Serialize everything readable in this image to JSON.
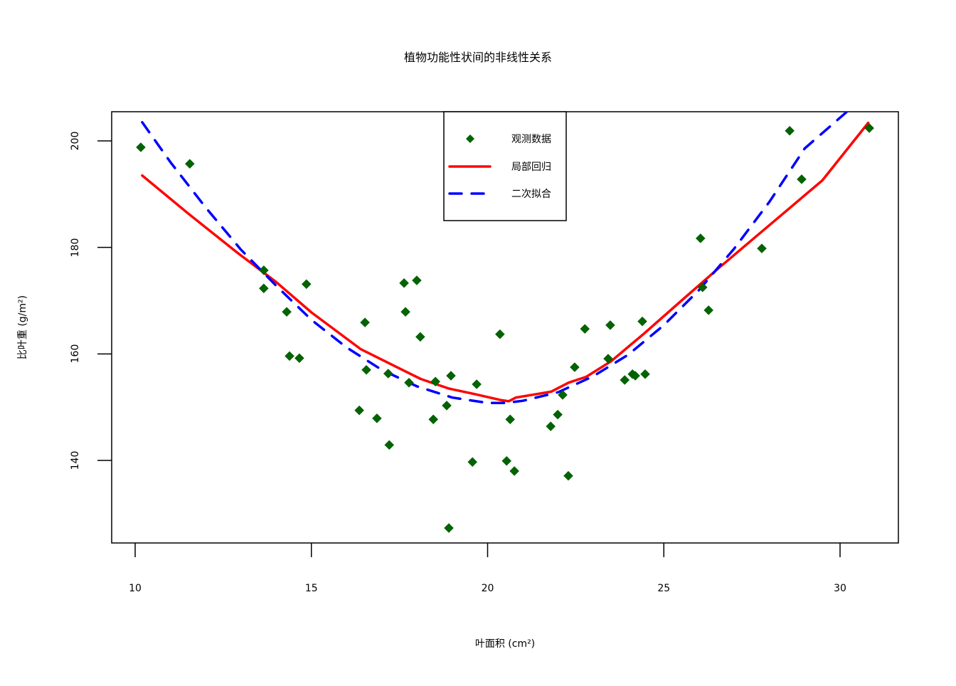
{
  "chart_data": {
    "type": "scatter",
    "title": "植物功能性状间的非线性关系",
    "xlabel": "叶面积 (cm²)",
    "ylabel": "比叶重 (g/m²)",
    "xlim": [
      9.35,
      31.65
    ],
    "ylim": [
      124.5,
      205.5
    ],
    "x_ticks": [
      10,
      15,
      20,
      25,
      30
    ],
    "y_ticks": [
      140,
      160,
      180,
      200
    ],
    "grid": false,
    "legend_position": "top-center",
    "legend": [
      {
        "label": "观测数据",
        "kind": "marker",
        "color": "#006400"
      },
      {
        "label": "局部回归",
        "kind": "solid-line",
        "color": "#ff0000"
      },
      {
        "label": "二次拟合",
        "kind": "dashed-line",
        "color": "#0000ff"
      }
    ],
    "series": [
      {
        "name": "观测数据",
        "type": "scatter",
        "marker": "diamond",
        "color": "#006400",
        "x": [
          10.16,
          11.55,
          13.65,
          13.65,
          14.3,
          14.38,
          14.66,
          14.86,
          16.36,
          16.52,
          16.56,
          16.86,
          17.18,
          17.21,
          17.63,
          17.67,
          17.77,
          17.99,
          18.09,
          18.46,
          18.52,
          18.84,
          18.9,
          18.96,
          19.57,
          19.69,
          20.35,
          20.54,
          20.64,
          20.76,
          21.79,
          21.99,
          22.13,
          22.29,
          22.47,
          22.76,
          23.42,
          23.48,
          23.89,
          24.11,
          24.19,
          24.39,
          24.47,
          26.04,
          26.1,
          26.27,
          27.78,
          28.57,
          28.91,
          30.83
        ],
        "y": [
          198.8,
          195.7,
          175.7,
          172.3,
          167.9,
          159.6,
          159.2,
          173.1,
          149.4,
          165.9,
          157.0,
          147.9,
          156.3,
          142.9,
          173.3,
          167.9,
          154.6,
          173.8,
          163.2,
          147.7,
          154.8,
          150.3,
          127.3,
          155.9,
          139.7,
          154.3,
          163.7,
          139.9,
          147.7,
          138.0,
          146.4,
          148.6,
          152.3,
          137.1,
          157.5,
          164.7,
          159.1,
          165.4,
          155.1,
          156.2,
          155.9,
          166.1,
          156.2,
          181.7,
          172.5,
          168.2,
          179.8,
          201.9,
          192.8,
          202.4
        ]
      },
      {
        "name": "局部回归",
        "type": "line",
        "style": "solid",
        "color": "#ff0000",
        "x": [
          10.2,
          11.5,
          12.9,
          14.0,
          15.0,
          16.4,
          17.4,
          18.1,
          18.9,
          19.6,
          20.4,
          20.6,
          20.8,
          21.8,
          22.3,
          22.8,
          23.5,
          24.4,
          25.5,
          26.5,
          27.5,
          28.5,
          29.5,
          30.8
        ],
        "y": [
          193.5,
          186.4,
          179.0,
          173.5,
          167.8,
          160.9,
          157.6,
          155.3,
          153.5,
          152.5,
          151.3,
          151.1,
          151.8,
          152.9,
          154.6,
          155.7,
          158.6,
          163.6,
          170.0,
          175.8,
          181.4,
          187.0,
          192.6,
          203.4
        ]
      },
      {
        "name": "二次拟合",
        "type": "line",
        "style": "dashed",
        "color": "#0000ff",
        "x": [
          10.2,
          11.0,
          12.0,
          13.0,
          14.0,
          15.0,
          16.0,
          17.0,
          18.0,
          19.0,
          20.0,
          20.5,
          21.0,
          22.0,
          23.0,
          24.0,
          25.0,
          26.0,
          27.0,
          28.0,
          29.0,
          30.2
        ],
        "y": [
          203.5,
          196.0,
          187.5,
          179.6,
          172.8,
          166.4,
          161.2,
          157.0,
          153.9,
          151.8,
          150.8,
          150.8,
          151.2,
          152.8,
          155.8,
          159.9,
          165.4,
          172.0,
          179.8,
          188.6,
          198.6,
          205.5
        ]
      }
    ]
  }
}
